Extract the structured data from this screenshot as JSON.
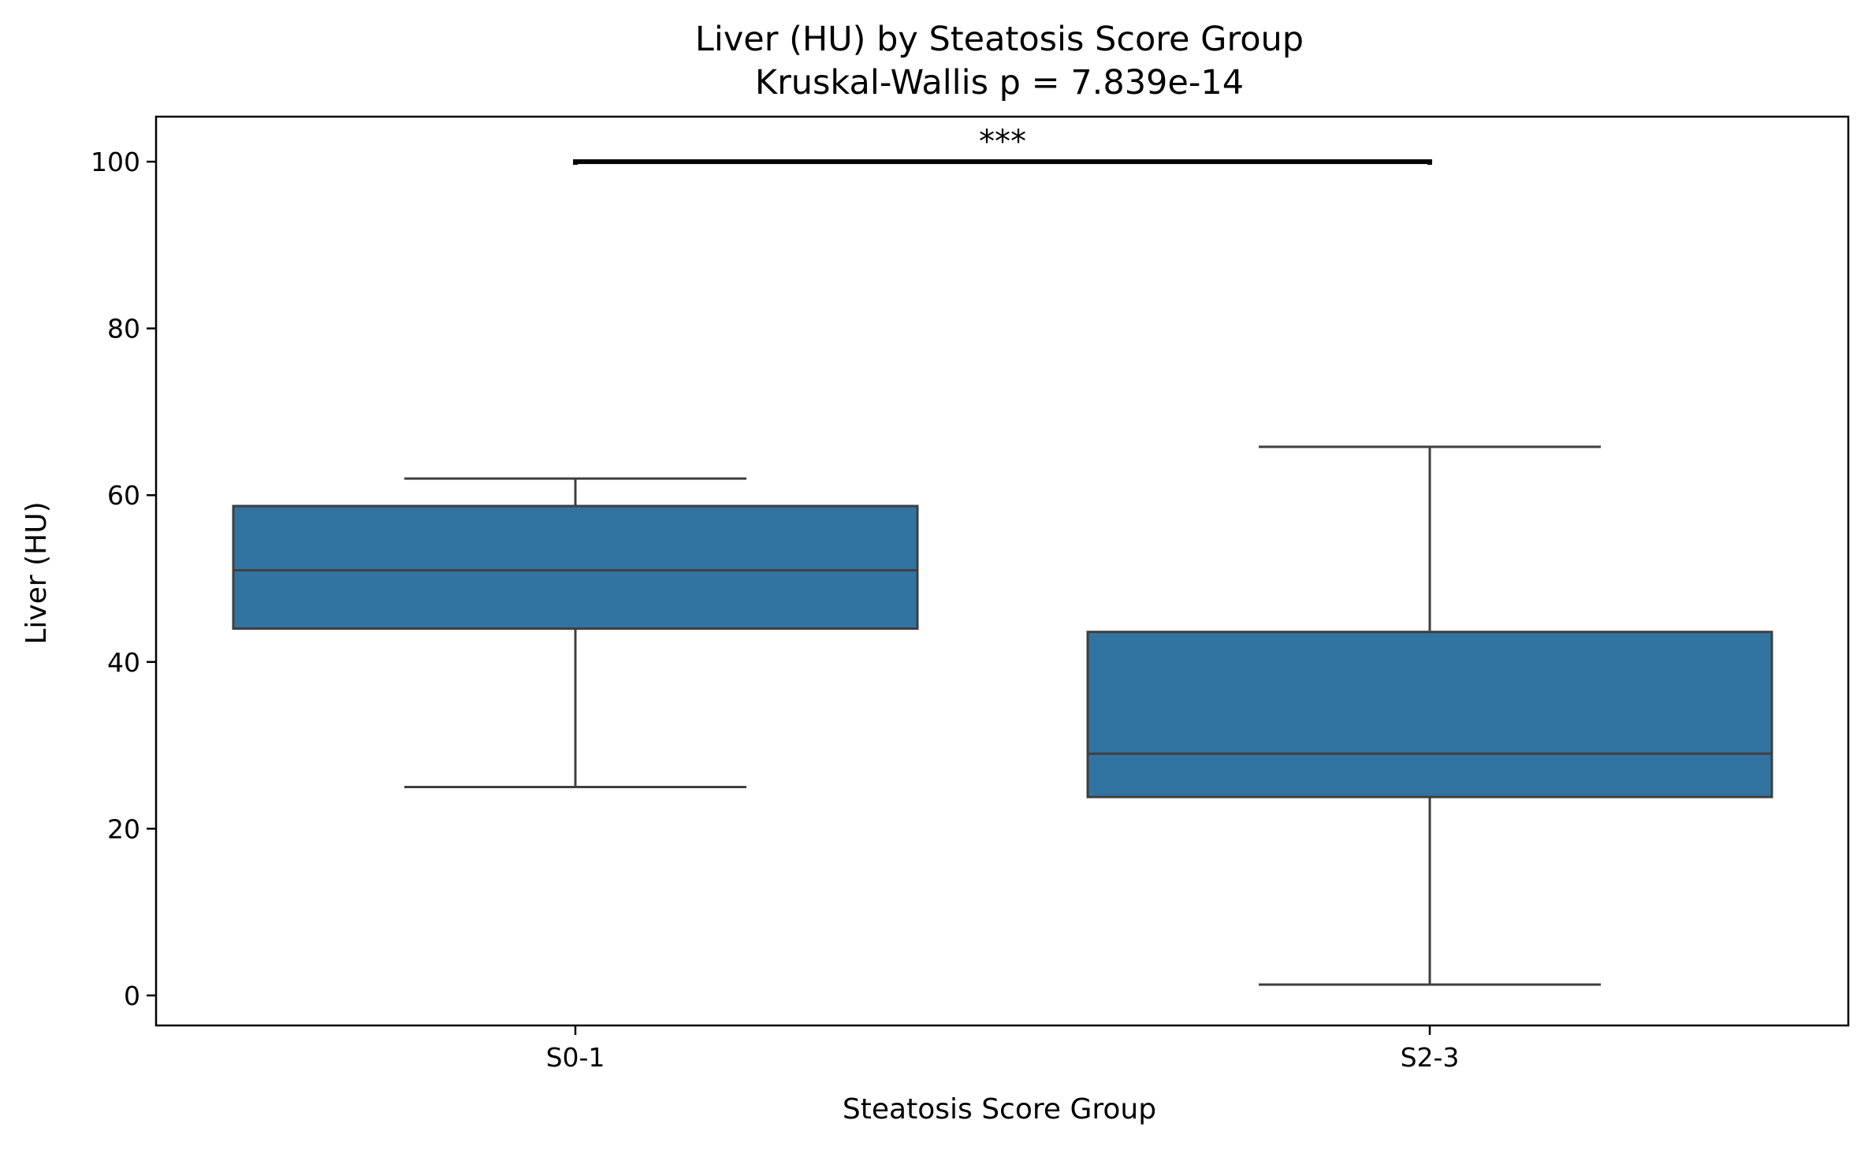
{
  "chart_data": {
    "type": "box",
    "title": "Liver (HU) by Steatosis Score Group",
    "subtitle": "Kruskal-Wallis p = 7.839e-14",
    "xlabel": "Steatosis Score Group",
    "ylabel": "Liver (HU)",
    "ylim": [
      -3.6,
      105.4
    ],
    "yticks": [
      0,
      20,
      40,
      60,
      80,
      100
    ],
    "grid": false,
    "box_color": "#3274a1",
    "line_color": "#3f3f3f",
    "categories": [
      "S0-1",
      "S2-3"
    ],
    "boxes": [
      {
        "category": "S0-1",
        "whisker_low": 25,
        "q1": 44,
        "median": 51,
        "q3": 58.7,
        "whisker_high": 62
      },
      {
        "category": "S2-3",
        "whisker_low": 1.3,
        "q1": 23.8,
        "median": 29,
        "q3": 43.6,
        "whisker_high": 65.8
      }
    ],
    "significance": {
      "from": "S0-1",
      "to": "S2-3",
      "y": 100,
      "label": "***"
    }
  }
}
